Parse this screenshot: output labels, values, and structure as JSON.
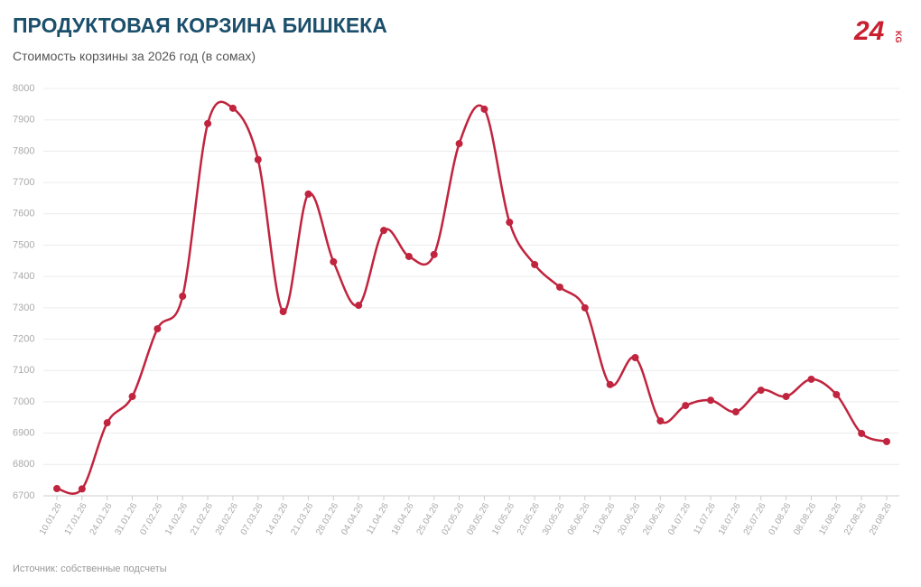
{
  "chart_data": {
    "type": "line",
    "title": "ПРОДУКТОВАЯ КОРЗИНА БИШКЕКА",
    "subtitle": "Стоимость корзины за 2026 год (в сомах)",
    "source": "Источник: собственные подсчеты",
    "logo": {
      "number": "24",
      "suffix": "KG"
    },
    "categories": [
      "10.01.26",
      "17.01.26",
      "24.01.26",
      "31.01.26",
      "07.02.26",
      "14.02.26",
      "21.02.26",
      "28.02.26",
      "07.03.26",
      "14.03.26",
      "21.03.26",
      "28.03.26",
      "04.04.26",
      "11.04.26",
      "18.04.26",
      "25.04.26",
      "02.05.26",
      "09.05.26",
      "16.05.26",
      "23.05.26",
      "30.05.26",
      "06.06.26",
      "13.06.26",
      "20.06.26",
      "26.06.26",
      "04.07.26",
      "11.07.26",
      "18.07.26",
      "25.07.26",
      "01.08.26",
      "08.08.26",
      "15.08.26",
      "22.08.26",
      "29.08.26"
    ],
    "series": [
      {
        "color": "#c0243e",
        "values": [
          6723,
          6722,
          6933,
          7017,
          7233,
          7337,
          7888,
          7937,
          7773,
          7288,
          7663,
          7447,
          7308,
          7547,
          7464,
          7470,
          7824,
          7934,
          7573,
          7438,
          7366,
          7300,
          7055,
          7141,
          6939,
          6988,
          7005,
          6968,
          7037,
          7017,
          7072,
          7023,
          6899,
          6873
        ]
      }
    ],
    "ylim": [
      6700,
      8000
    ],
    "yticks": [
      6700,
      6800,
      6900,
      7000,
      7100,
      7200,
      7300,
      7400,
      7500,
      7600,
      7700,
      7800,
      7900,
      8000
    ],
    "grid": true
  }
}
